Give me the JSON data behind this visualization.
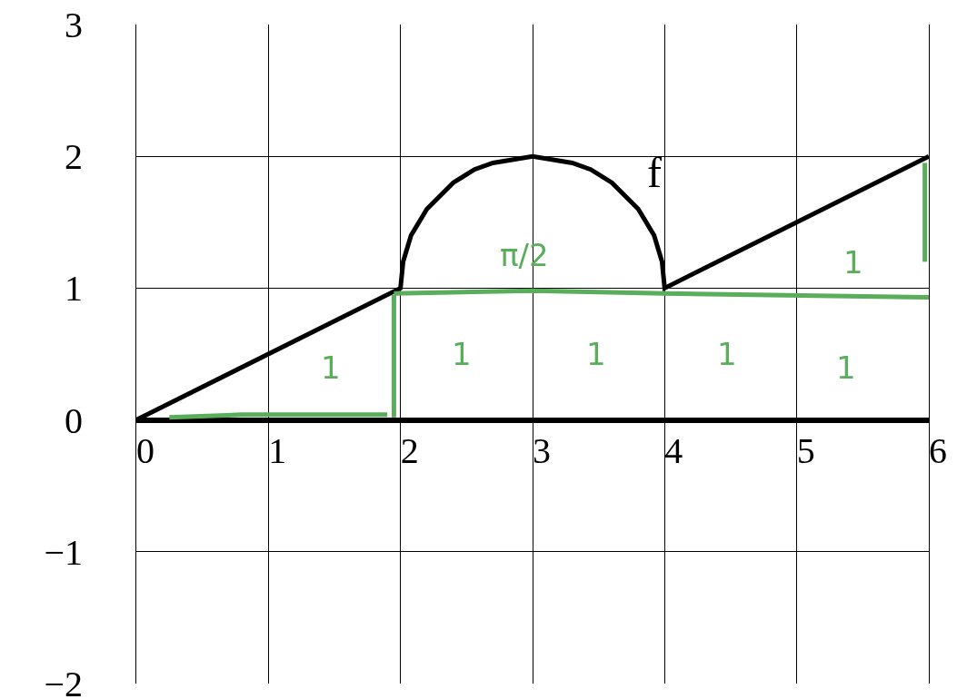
{
  "chart_data": {
    "type": "line",
    "xlim": [
      0,
      6
    ],
    "ylim": [
      -2,
      3
    ],
    "xticks": [
      0,
      1,
      2,
      3,
      4,
      5,
      6
    ],
    "yticks": [
      -2,
      -1,
      0,
      1,
      2,
      3
    ],
    "grid": true,
    "legend": false,
    "marker": "none",
    "line_style": "solid",
    "series": [
      {
        "name": "f",
        "color": "#000000",
        "x": [
          0,
          2,
          2.02,
          2.08,
          2.2,
          2.4,
          2.56,
          2.7,
          3,
          3.3,
          3.44,
          3.6,
          3.8,
          3.92,
          3.98,
          4,
          6
        ],
        "values": [
          0,
          1,
          1.2,
          1.4,
          1.6,
          1.8,
          1.9,
          1.95,
          2,
          1.95,
          1.9,
          1.8,
          1.6,
          1.4,
          1.2,
          1,
          2
        ]
      },
      {
        "color": "#5aad5a",
        "x": [
          0.25,
          0.8,
          1.9
        ],
        "values": [
          0.02,
          0.04,
          0.04
        ]
      },
      {
        "color": "#5aad5a",
        "x": [
          1.95,
          1.95
        ],
        "values": [
          0.02,
          0.95
        ]
      },
      {
        "color": "#5aad5a",
        "x": [
          1.95,
          3,
          4,
          6
        ],
        "values": [
          0.96,
          0.98,
          0.96,
          0.93
        ]
      },
      {
        "color": "#5aad5a",
        "x": [
          5.97,
          5.97
        ],
        "values": [
          1.2,
          1.95
        ]
      }
    ],
    "annotations": [
      "π/2",
      "1",
      "1",
      "1",
      "1",
      "1",
      "1"
    ]
  }
}
